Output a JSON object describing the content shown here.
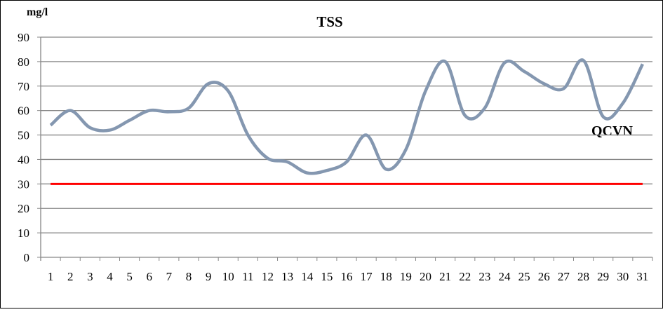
{
  "chart_data": {
    "type": "line",
    "title": "TSS",
    "ylabel": "mg/l",
    "xlabel": "",
    "ylim": [
      0,
      90
    ],
    "yticks": [
      0,
      10,
      20,
      30,
      40,
      50,
      60,
      70,
      80,
      90
    ],
    "grid": true,
    "smooth": true,
    "x": [
      1,
      2,
      3,
      4,
      5,
      6,
      7,
      8,
      9,
      10,
      11,
      12,
      13,
      14,
      15,
      16,
      17,
      18,
      19,
      20,
      21,
      22,
      23,
      24,
      25,
      26,
      27,
      28,
      29,
      30,
      31
    ],
    "series": [
      {
        "values": [
          54,
          60,
          53,
          52,
          56,
          60,
          59.5,
          61,
          71,
          68,
          50,
          40.5,
          39,
          34.5,
          35.5,
          39,
          50,
          36,
          44,
          68,
          80,
          58,
          61,
          79.5,
          76,
          71,
          69,
          80.5,
          57.5,
          63,
          79
        ],
        "color": "#8497b0"
      },
      {
        "name": "QCVN",
        "values": [
          30,
          30,
          30,
          30,
          30,
          30,
          30,
          30,
          30,
          30,
          30,
          30,
          30,
          30,
          30,
          30,
          30,
          30,
          30,
          30,
          30,
          30,
          30,
          30,
          30,
          30,
          30,
          30,
          30,
          30,
          30
        ],
        "color": "#ff0000"
      }
    ],
    "annotations": [
      "QCVN"
    ]
  }
}
